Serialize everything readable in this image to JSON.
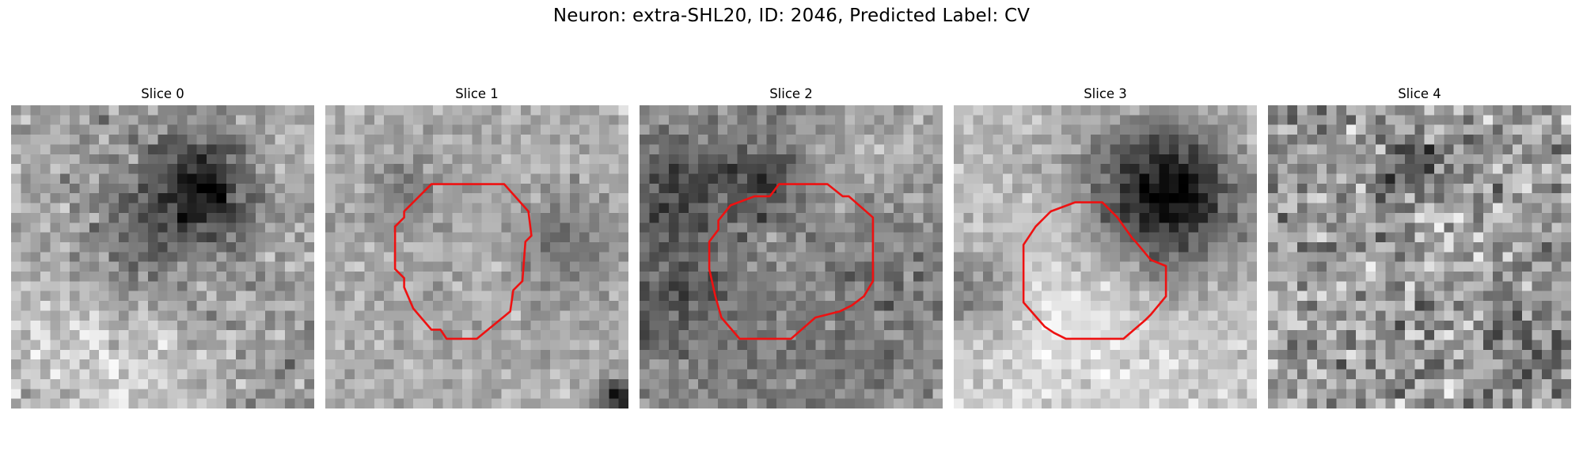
{
  "figure": {
    "title": "Neuron: extra-SHL20, ID: 2046, Predicted Label: CV",
    "contour_color": "#ee1111",
    "panels": [
      {
        "title": "Slice 0",
        "seed": 11,
        "noise": 46,
        "base": 172,
        "blobs": [
          {
            "c": [
              0.63,
              0.27
            ],
            "r": 0.11,
            "v": -110
          },
          {
            "c": [
              0.5,
              0.33
            ],
            "r": 0.25,
            "v": -45
          },
          {
            "c": [
              0.45,
              0.5
            ],
            "r": 0.14,
            "v": -35
          },
          {
            "c": [
              0.3,
              0.85
            ],
            "r": 0.25,
            "v": 38
          },
          {
            "c": [
              0.9,
              0.9
            ],
            "r": 0.12,
            "v": -30
          }
        ],
        "contour": []
      },
      {
        "title": "Slice 1",
        "seed": 22,
        "noise": 34,
        "base": 205,
        "blobs": [
          {
            "c": [
              0.5,
              0.48
            ],
            "r": 0.42,
            "v": -95
          },
          {
            "c": [
              0.5,
              0.48
            ],
            "r": 0.3,
            "v": 60
          },
          {
            "c": [
              0.8,
              0.45
            ],
            "r": 0.1,
            "v": -55
          },
          {
            "c": [
              0.25,
              0.3
            ],
            "r": 0.09,
            "v": -40
          },
          {
            "c": [
              0.97,
              0.97
            ],
            "r": 0.05,
            "v": -150
          }
        ],
        "contour": [
          [
            0.35,
            0.26
          ],
          [
            0.59,
            0.26
          ],
          [
            0.67,
            0.35
          ],
          [
            0.68,
            0.43
          ],
          [
            0.66,
            0.45
          ],
          [
            0.65,
            0.58
          ],
          [
            0.62,
            0.61
          ],
          [
            0.61,
            0.68
          ],
          [
            0.5,
            0.77
          ],
          [
            0.4,
            0.77
          ],
          [
            0.38,
            0.74
          ],
          [
            0.35,
            0.74
          ],
          [
            0.29,
            0.67
          ],
          [
            0.26,
            0.6
          ],
          [
            0.26,
            0.57
          ],
          [
            0.23,
            0.54
          ],
          [
            0.23,
            0.4
          ],
          [
            0.26,
            0.37
          ],
          [
            0.26,
            0.35
          ]
        ]
      },
      {
        "title": "Slice 2",
        "seed": 33,
        "noise": 40,
        "base": 165,
        "blobs": [
          {
            "c": [
              0.52,
              0.5
            ],
            "r": 0.38,
            "v": -90
          },
          {
            "c": [
              0.52,
              0.47
            ],
            "r": 0.22,
            "v": 60
          },
          {
            "c": [
              0.12,
              0.27
            ],
            "r": 0.12,
            "v": -60
          },
          {
            "c": [
              0.4,
              0.25
            ],
            "r": 0.08,
            "v": -70
          },
          {
            "c": [
              0.05,
              0.65
            ],
            "r": 0.12,
            "v": -50
          },
          {
            "c": [
              0.8,
              0.1
            ],
            "r": 0.2,
            "v": 40
          }
        ],
        "contour": [
          [
            0.43,
            0.3
          ],
          [
            0.46,
            0.26
          ],
          [
            0.62,
            0.26
          ],
          [
            0.67,
            0.3
          ],
          [
            0.69,
            0.3
          ],
          [
            0.77,
            0.37
          ],
          [
            0.77,
            0.58
          ],
          [
            0.74,
            0.63
          ],
          [
            0.7,
            0.66
          ],
          [
            0.66,
            0.68
          ],
          [
            0.58,
            0.7
          ],
          [
            0.5,
            0.77
          ],
          [
            0.33,
            0.77
          ],
          [
            0.27,
            0.7
          ],
          [
            0.25,
            0.63
          ],
          [
            0.23,
            0.54
          ],
          [
            0.23,
            0.45
          ],
          [
            0.26,
            0.41
          ],
          [
            0.26,
            0.38
          ],
          [
            0.3,
            0.33
          ],
          [
            0.38,
            0.3
          ]
        ]
      },
      {
        "title": "Slice 3",
        "seed": 44,
        "noise": 34,
        "base": 205,
        "blobs": [
          {
            "c": [
              0.7,
              0.28
            ],
            "r": 0.16,
            "v": -150
          },
          {
            "c": [
              0.7,
              0.35
            ],
            "r": 0.24,
            "v": -55
          },
          {
            "c": [
              0.05,
              0.6
            ],
            "r": 0.1,
            "v": -90
          },
          {
            "c": [
              0.4,
              0.65
            ],
            "r": 0.22,
            "v": 30
          },
          {
            "c": [
              0.2,
              0.15
            ],
            "r": 0.18,
            "v": -30
          }
        ],
        "contour": [
          [
            0.32,
            0.35
          ],
          [
            0.4,
            0.32
          ],
          [
            0.49,
            0.32
          ],
          [
            0.54,
            0.37
          ],
          [
            0.59,
            0.44
          ],
          [
            0.6,
            0.45
          ],
          [
            0.65,
            0.51
          ],
          [
            0.7,
            0.53
          ],
          [
            0.7,
            0.63
          ],
          [
            0.65,
            0.69
          ],
          [
            0.63,
            0.71
          ],
          [
            0.56,
            0.77
          ],
          [
            0.37,
            0.77
          ],
          [
            0.33,
            0.75
          ],
          [
            0.3,
            0.73
          ],
          [
            0.23,
            0.65
          ],
          [
            0.23,
            0.46
          ],
          [
            0.25,
            0.43
          ],
          [
            0.27,
            0.4
          ]
        ]
      },
      {
        "title": "Slice 4",
        "seed": 55,
        "noise": 70,
        "base": 155,
        "blobs": [
          {
            "c": [
              0.45,
              0.2
            ],
            "r": 0.08,
            "v": -60
          },
          {
            "c": [
              0.9,
              0.8
            ],
            "r": 0.1,
            "v": -40
          }
        ],
        "contour": []
      }
    ]
  }
}
